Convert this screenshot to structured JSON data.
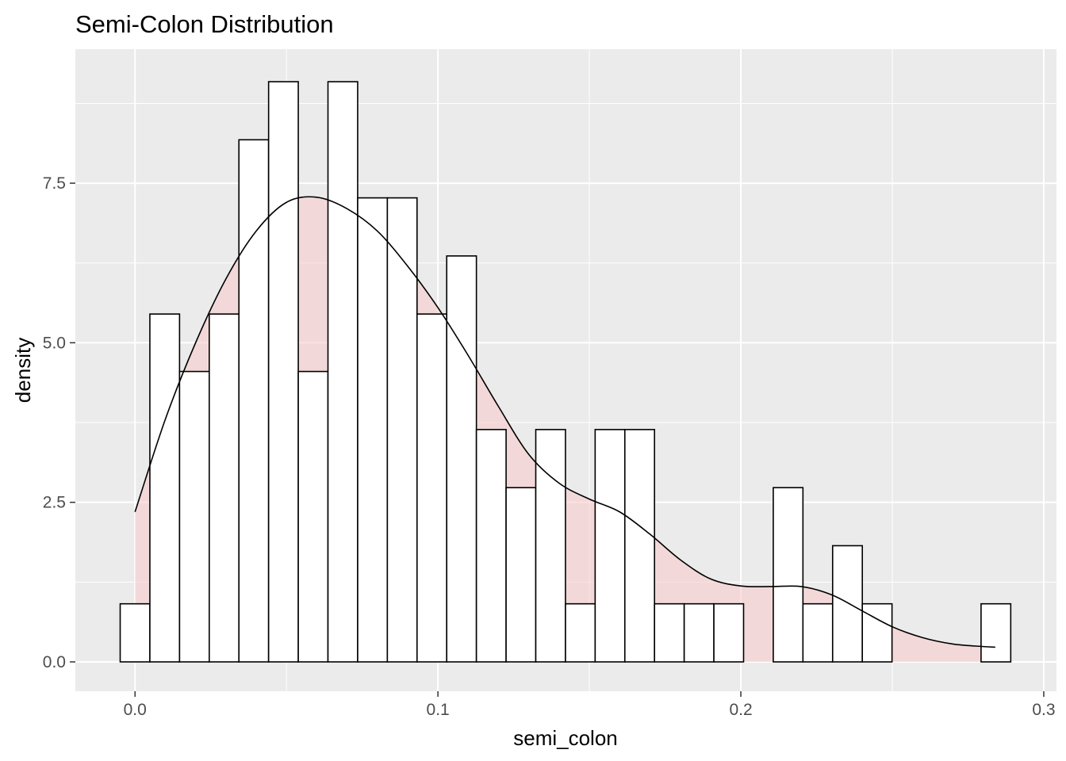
{
  "chart_data": {
    "type": "bar",
    "title": "Semi-Colon Distribution",
    "xlabel": "semi_colon",
    "ylabel": "density",
    "xlim": [
      -0.0197,
      0.3042
    ],
    "ylim": [
      -0.46,
      9.6
    ],
    "grid": true,
    "legend": "none",
    "x_ticks": [
      0.0,
      0.1,
      0.2,
      0.3
    ],
    "x_tick_labels": [
      "0.0",
      "0.1",
      "0.2",
      "0.3"
    ],
    "y_ticks": [
      0.0,
      2.5,
      5.0,
      7.5
    ],
    "y_tick_labels": [
      "0.0",
      "2.5",
      "5.0",
      "7.5"
    ],
    "histogram": {
      "bin_width": 0.0098,
      "first_bin_center": 0.0,
      "values": [
        0.91,
        5.45,
        4.55,
        5.45,
        8.18,
        9.09,
        4.55,
        9.09,
        7.27,
        7.27,
        5.45,
        6.36,
        3.64,
        2.73,
        3.64,
        0.91,
        3.64,
        3.64,
        0.91,
        0.91,
        0.91,
        0,
        2.73,
        0.91,
        1.82,
        0.91,
        0,
        0,
        0,
        0.91
      ],
      "fill": "#ffffff",
      "stroke": "#000000"
    },
    "density": {
      "x": [
        0.0,
        0.01,
        0.02,
        0.03,
        0.04,
        0.05,
        0.06,
        0.07,
        0.08,
        0.09,
        0.1,
        0.11,
        0.12,
        0.13,
        0.14,
        0.15,
        0.16,
        0.17,
        0.18,
        0.19,
        0.2,
        0.21,
        0.22,
        0.23,
        0.24,
        0.25,
        0.26,
        0.27,
        0.28,
        0.284
      ],
      "y": [
        2.35,
        3.8,
        5.0,
        6.0,
        6.75,
        7.2,
        7.28,
        7.1,
        6.75,
        6.2,
        5.55,
        4.8,
        4.0,
        3.25,
        2.8,
        2.55,
        2.35,
        2.0,
        1.6,
        1.3,
        1.19,
        1.18,
        1.18,
        1.05,
        0.8,
        0.55,
        0.38,
        0.28,
        0.24,
        0.23
      ],
      "fill": "#f8c8c8",
      "fill_opacity": 0.55,
      "stroke": "#000000"
    },
    "colors": {
      "panel_background": "#ebebeb",
      "grid_major": "#ffffff",
      "tick_text": "#4d4d4d",
      "axis_tick": "#333333"
    }
  }
}
